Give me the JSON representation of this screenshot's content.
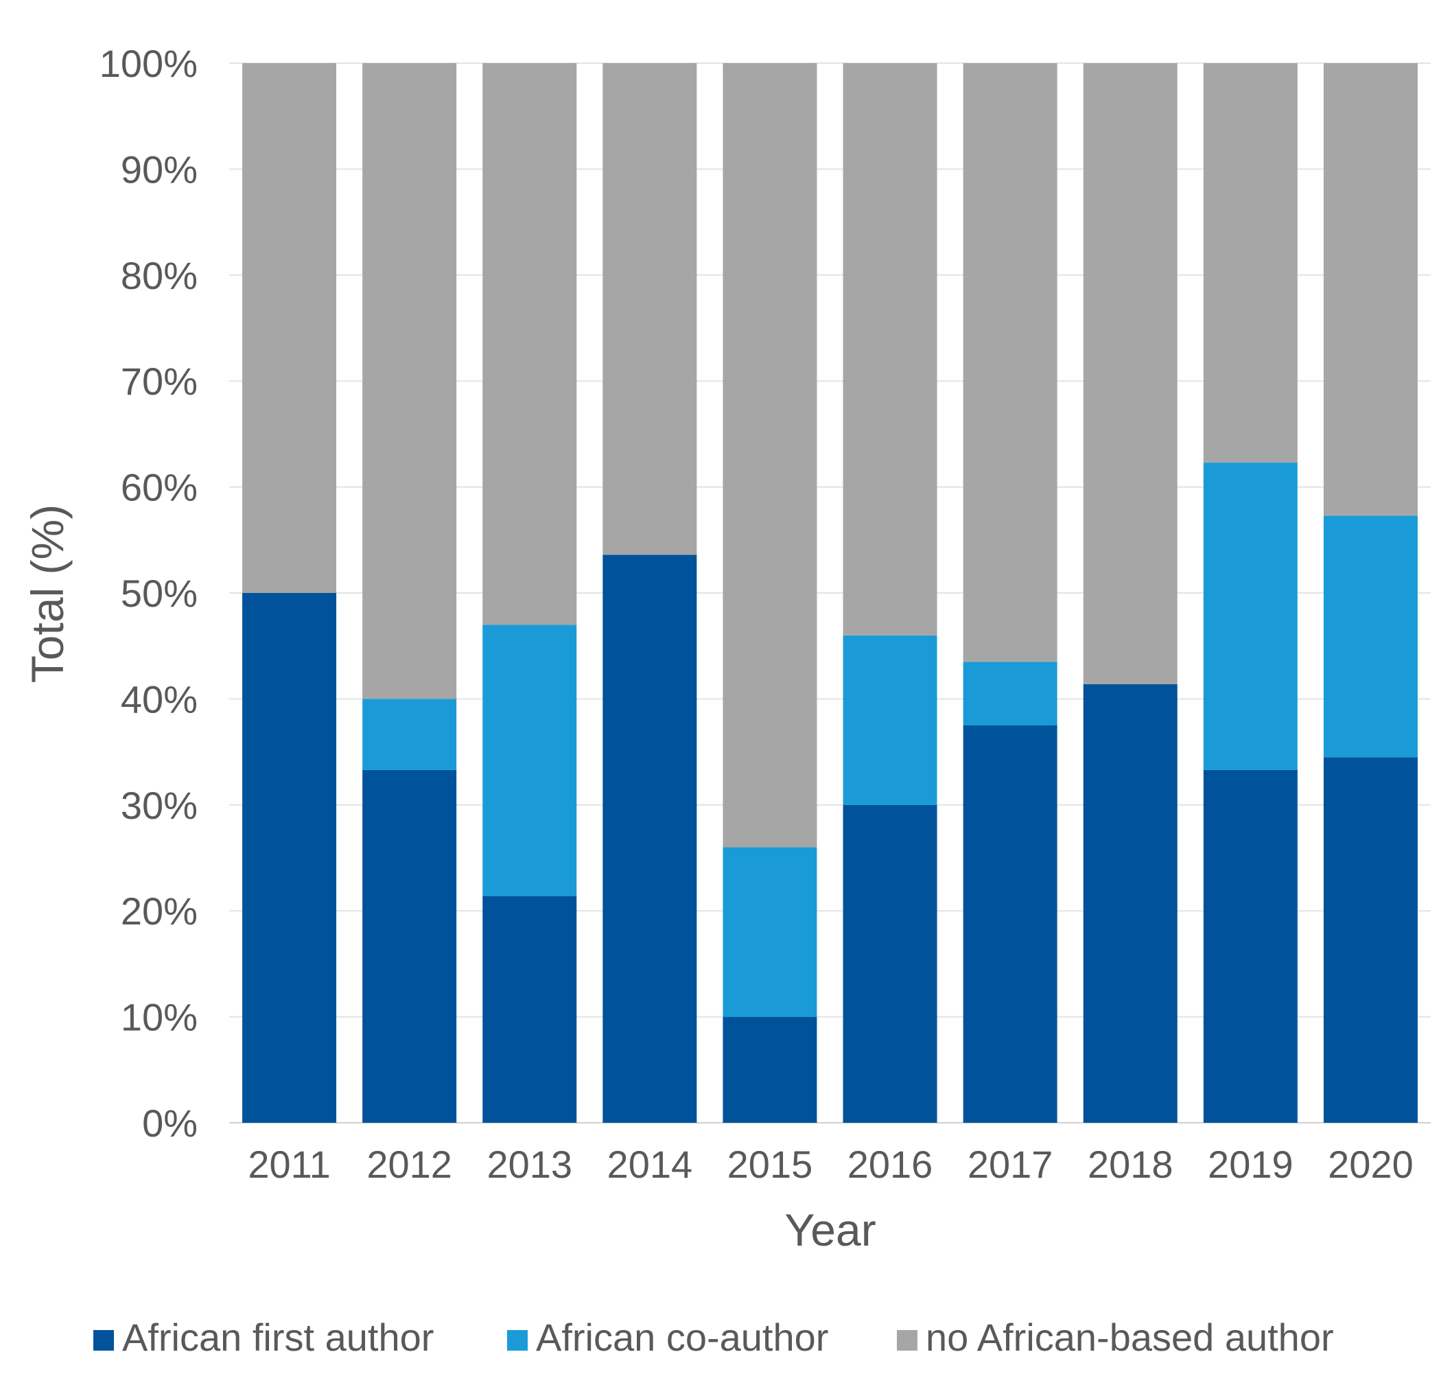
{
  "chart_data": {
    "type": "bar",
    "stacked": true,
    "title": "",
    "xlabel": "Year",
    "ylabel": "Total (%)",
    "ylim": [
      0,
      100
    ],
    "yticks": [
      0,
      10,
      20,
      30,
      40,
      50,
      60,
      70,
      80,
      90,
      100
    ],
    "ytick_suffix": "%",
    "grid": true,
    "legend_position": "bottom",
    "categories": [
      "2011",
      "2012",
      "2013",
      "2014",
      "2015",
      "2016",
      "2017",
      "2018",
      "2019",
      "2020"
    ],
    "series": [
      {
        "name": "African first author",
        "color": "#00539b",
        "values": [
          50.0,
          33.3,
          21.4,
          53.6,
          10.0,
          30.0,
          37.5,
          41.4,
          33.3,
          34.5
        ]
      },
      {
        "name": "African co-author",
        "color": "#1a9bd7",
        "values": [
          0.0,
          6.7,
          25.6,
          0.0,
          16.0,
          16.0,
          6.0,
          0.0,
          29.0,
          22.8
        ]
      },
      {
        "name": "no African-based author",
        "color": "#a6a6a6",
        "values": [
          50.0,
          60.0,
          53.0,
          46.4,
          74.0,
          54.0,
          56.5,
          58.6,
          37.7,
          42.7
        ]
      }
    ]
  }
}
